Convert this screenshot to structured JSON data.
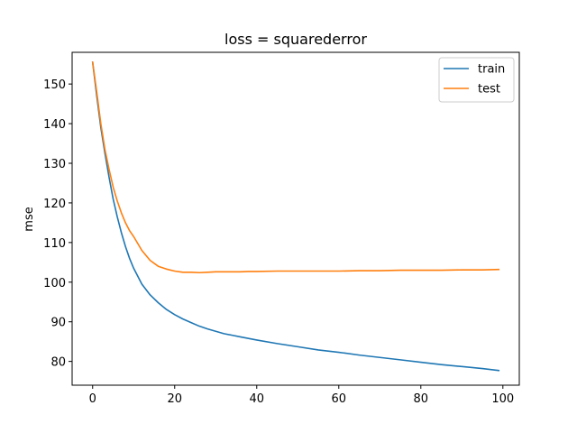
{
  "chart_data": {
    "type": "line",
    "title": "loss = squarederror",
    "xlabel": "",
    "ylabel": "mse",
    "xlim": [
      -5,
      104
    ],
    "ylim": [
      74,
      158
    ],
    "xticks": [
      0,
      20,
      40,
      60,
      80,
      100
    ],
    "yticks": [
      80,
      90,
      100,
      110,
      120,
      130,
      140,
      150
    ],
    "grid": false,
    "legend_position": "top-right",
    "series": [
      {
        "name": "train",
        "color": "#1f77b4",
        "x": [
          0,
          1,
          2,
          3,
          4,
          5,
          6,
          7,
          8,
          9,
          10,
          12,
          14,
          16,
          18,
          20,
          22,
          24,
          26,
          28,
          30,
          32,
          34,
          36,
          38,
          40,
          45,
          50,
          55,
          60,
          65,
          70,
          75,
          80,
          85,
          90,
          95,
          99
        ],
        "values": [
          155.5,
          147,
          139,
          132.5,
          126.5,
          121,
          116.5,
          112.5,
          109,
          106,
          103.5,
          99.5,
          96.8,
          94.8,
          93.1,
          91.8,
          90.7,
          89.8,
          88.9,
          88.2,
          87.6,
          87.0,
          86.6,
          86.2,
          85.8,
          85.4,
          84.5,
          83.7,
          82.9,
          82.3,
          81.6,
          81.0,
          80.4,
          79.8,
          79.2,
          78.7,
          78.2,
          77.7
        ]
      },
      {
        "name": "test",
        "color": "#ff7f0e",
        "x": [
          0,
          1,
          2,
          3,
          4,
          5,
          6,
          7,
          8,
          9,
          10,
          12,
          14,
          16,
          18,
          20,
          22,
          24,
          26,
          28,
          30,
          32,
          34,
          36,
          38,
          40,
          45,
          50,
          55,
          60,
          65,
          70,
          75,
          80,
          85,
          90,
          95,
          99
        ],
        "values": [
          155.5,
          148,
          140,
          133.5,
          128.5,
          124,
          120.5,
          117.5,
          115,
          113,
          111.5,
          108,
          105.5,
          104,
          103.3,
          102.8,
          102.5,
          102.5,
          102.4,
          102.5,
          102.6,
          102.6,
          102.6,
          102.6,
          102.7,
          102.7,
          102.8,
          102.8,
          102.8,
          102.8,
          102.9,
          102.9,
          103.0,
          103.0,
          103.0,
          103.1,
          103.1,
          103.2
        ]
      }
    ]
  }
}
